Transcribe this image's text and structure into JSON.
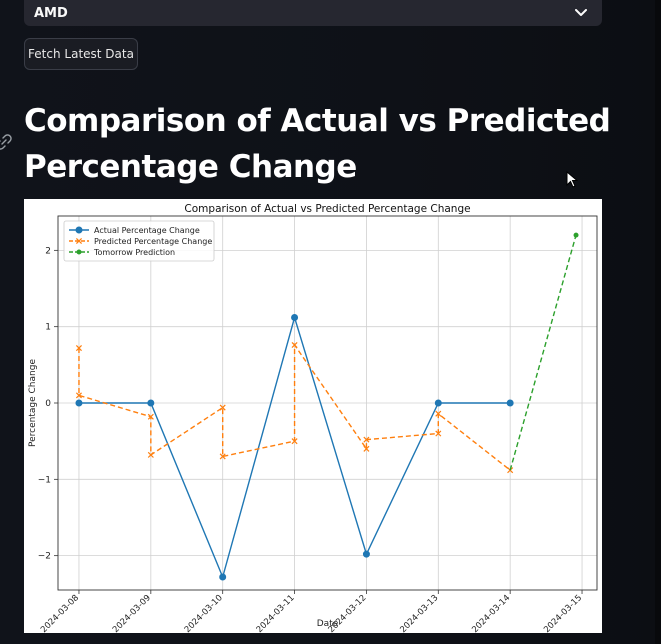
{
  "select": {
    "value": "AMD",
    "icon": "chevron-down-icon"
  },
  "fetch_button": {
    "label": "Fetch Latest Data"
  },
  "page": {
    "heading": "Comparison of Actual vs Predicted Percentage Change"
  },
  "colors": {
    "actual": "#1f77b4",
    "predicted": "#ff7f0e",
    "tomorrow": "#2ca02c",
    "page_bg": "#0e1117",
    "select_bg": "#262730"
  },
  "chart_data": {
    "type": "line",
    "title": "Comparison of Actual vs Predicted Percentage Change",
    "xlabel": "Date",
    "ylabel": "Percentage Change",
    "x_ticks": [
      "2024-03-08",
      "2024-03-09",
      "2024-03-10",
      "2024-03-11",
      "2024-03-12",
      "2024-03-13",
      "2024-03-14",
      "2024-03-15"
    ],
    "y_ticks": [
      -2,
      -1,
      0,
      1,
      2
    ],
    "xlim": [
      "2024-03-07T17:00",
      "2024-03-15T05:00"
    ],
    "ylim": [
      -2.45,
      2.45
    ],
    "grid": true,
    "legend_position": "upper-left",
    "series": [
      {
        "name": "Actual Percentage Change",
        "style": "solid",
        "marker": "circle",
        "color": "#1f77b4",
        "points": [
          [
            "2024-03-08T00:00",
            0.0
          ],
          [
            "2024-03-09T00:00",
            0.0
          ],
          [
            "2024-03-10T00:00",
            -2.28
          ],
          [
            "2024-03-11T00:00",
            1.12
          ],
          [
            "2024-03-12T00:00",
            -1.98
          ],
          [
            "2024-03-13T00:00",
            0.0
          ],
          [
            "2024-03-14T00:00",
            0.0
          ]
        ]
      },
      {
        "name": "Predicted Percentage Change",
        "style": "dashed",
        "marker": "x",
        "color": "#ff7f0e",
        "points": [
          [
            "2024-03-08T00:00",
            0.72
          ],
          [
            "2024-03-08T00:00",
            0.1
          ],
          [
            "2024-03-09T00:00",
            -0.18
          ],
          [
            "2024-03-09T00:00",
            -0.68
          ],
          [
            "2024-03-10T00:00",
            -0.06
          ],
          [
            "2024-03-10T00:00",
            -0.7
          ],
          [
            "2024-03-11T00:00",
            -0.5
          ],
          [
            "2024-03-11T00:00",
            0.76
          ],
          [
            "2024-03-12T00:00",
            -0.6
          ],
          [
            "2024-03-12T00:00",
            -0.48
          ],
          [
            "2024-03-13T00:00",
            -0.4
          ],
          [
            "2024-03-13T00:00",
            -0.14
          ],
          [
            "2024-03-14T00:00",
            -0.88
          ]
        ]
      },
      {
        "name": "Tomorrow Prediction",
        "style": "dashed",
        "marker": "circle-small",
        "color": "#2ca02c",
        "points": [
          [
            "2024-03-14T00:00",
            -0.88
          ],
          [
            "2024-03-14T22:00",
            2.2
          ]
        ]
      }
    ]
  }
}
